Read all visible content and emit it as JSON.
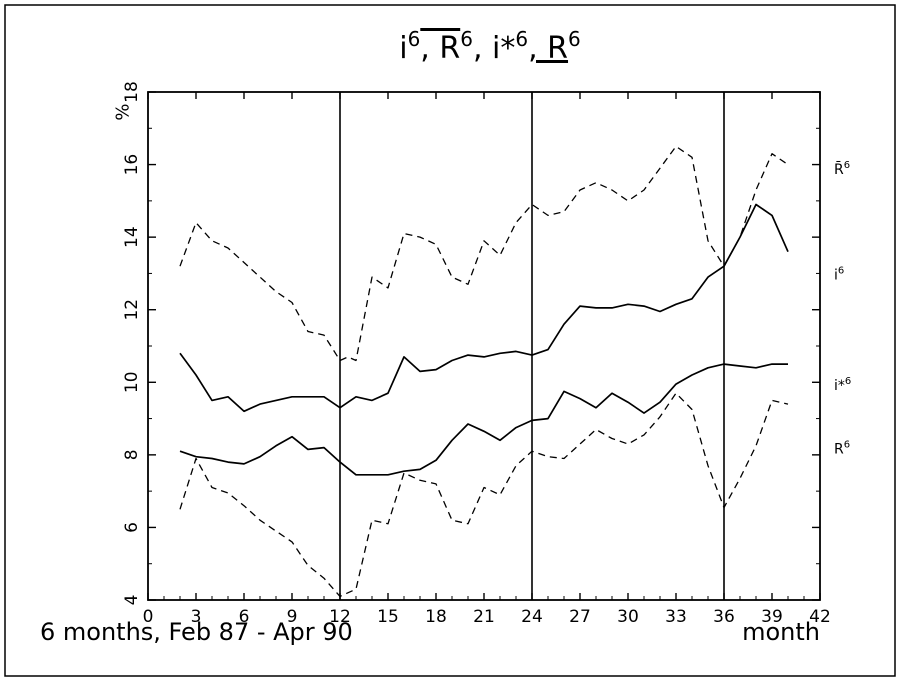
{
  "chart_data": {
    "type": "line",
    "title": {
      "parts": [
        "i",
        "R",
        "i*",
        "R"
      ],
      "superscript": "6",
      "separator": ", "
    },
    "ylabel": "%",
    "xlabel": "month",
    "caption": "6 months, Feb 87 - Apr 90",
    "xlim": [
      0,
      42
    ],
    "ylim": [
      4,
      18
    ],
    "x_ticks": [
      0,
      3,
      6,
      9,
      12,
      15,
      18,
      21,
      24,
      27,
      30,
      33,
      36,
      39,
      42
    ],
    "y_ticks": [
      4,
      6,
      8,
      10,
      12,
      14,
      16,
      18
    ],
    "vertical_lines": [
      12,
      24,
      36
    ],
    "grid": false,
    "series": [
      {
        "name": "R̄",
        "sup": "6",
        "style": "dashed",
        "points": [
          [
            2,
            13.2
          ],
          [
            3,
            14.4
          ],
          [
            4,
            13.9
          ],
          [
            5,
            13.7
          ],
          [
            6,
            13.3
          ],
          [
            7,
            12.9
          ],
          [
            8,
            12.5
          ],
          [
            9,
            12.2
          ],
          [
            10,
            11.4
          ],
          [
            11,
            11.3
          ],
          [
            12,
            10.6
          ],
          [
            12.5,
            10.7
          ],
          [
            13,
            10.6
          ],
          [
            14,
            12.9
          ],
          [
            15,
            12.6
          ],
          [
            16,
            14.1
          ],
          [
            17,
            14
          ],
          [
            18,
            13.8
          ],
          [
            19,
            12.9
          ],
          [
            20,
            12.7
          ],
          [
            21,
            13.9
          ],
          [
            22,
            13.5
          ],
          [
            23,
            14.4
          ],
          [
            24,
            14.9
          ],
          [
            25,
            14.6
          ],
          [
            26,
            14.7
          ],
          [
            27,
            15.3
          ],
          [
            28,
            15.5
          ],
          [
            29,
            15.3
          ],
          [
            30,
            15
          ],
          [
            31,
            15.3
          ],
          [
            32,
            15.9
          ],
          [
            33,
            16.5
          ],
          [
            34,
            16.2
          ],
          [
            35,
            13.9
          ],
          [
            36,
            13.2
          ],
          [
            37,
            14
          ],
          [
            38,
            15.3
          ],
          [
            39,
            16.3
          ],
          [
            40,
            16
          ]
        ]
      },
      {
        "name": "i",
        "sup": "6",
        "style": "solid",
        "points": [
          [
            2,
            10.8
          ],
          [
            3,
            10.2
          ],
          [
            4,
            9.5
          ],
          [
            5,
            9.6
          ],
          [
            6,
            9.2
          ],
          [
            7,
            9.4
          ],
          [
            8,
            9.5
          ],
          [
            9,
            9.6
          ],
          [
            10,
            9.6
          ],
          [
            11,
            9.6
          ],
          [
            12,
            9.3
          ],
          [
            13,
            9.6
          ],
          [
            14,
            9.5
          ],
          [
            15,
            9.7
          ],
          [
            16,
            10.7
          ],
          [
            17,
            10.3
          ],
          [
            18,
            10.35
          ],
          [
            19,
            10.6
          ],
          [
            20,
            10.75
          ],
          [
            21,
            10.7
          ],
          [
            22,
            10.8
          ],
          [
            23,
            10.85
          ],
          [
            24,
            10.75
          ],
          [
            25,
            10.9
          ],
          [
            26,
            11.6
          ],
          [
            27,
            12.1
          ],
          [
            28,
            12.05
          ],
          [
            29,
            12.05
          ],
          [
            30,
            12.15
          ],
          [
            31,
            12.1
          ],
          [
            32,
            11.95
          ],
          [
            33,
            12.15
          ],
          [
            34,
            12.3
          ],
          [
            35,
            12.9
          ],
          [
            36,
            13.2
          ],
          [
            37,
            14
          ],
          [
            38,
            14.9
          ],
          [
            39,
            14.6
          ],
          [
            40,
            13.6
          ]
        ]
      },
      {
        "name": "i*",
        "sup": "6",
        "style": "solid",
        "points": [
          [
            2,
            8.1
          ],
          [
            3,
            7.95
          ],
          [
            4,
            7.9
          ],
          [
            5,
            7.8
          ],
          [
            6,
            7.75
          ],
          [
            7,
            7.95
          ],
          [
            8,
            8.25
          ],
          [
            9,
            8.5
          ],
          [
            10,
            8.15
          ],
          [
            11,
            8.2
          ],
          [
            12,
            7.8
          ],
          [
            13,
            7.45
          ],
          [
            14,
            7.45
          ],
          [
            15,
            7.45
          ],
          [
            16,
            7.55
          ],
          [
            17,
            7.6
          ],
          [
            18,
            7.85
          ],
          [
            19,
            8.4
          ],
          [
            20,
            8.85
          ],
          [
            21,
            8.65
          ],
          [
            22,
            8.4
          ],
          [
            23,
            8.75
          ],
          [
            24,
            8.95
          ],
          [
            25,
            9
          ],
          [
            26,
            9.75
          ],
          [
            27,
            9.55
          ],
          [
            28,
            9.3
          ],
          [
            29,
            9.7
          ],
          [
            30,
            9.45
          ],
          [
            31,
            9.15
          ],
          [
            32,
            9.45
          ],
          [
            33,
            9.95
          ],
          [
            34,
            10.2
          ],
          [
            35,
            10.4
          ],
          [
            36,
            10.5
          ],
          [
            37,
            10.45
          ],
          [
            38,
            10.4
          ],
          [
            39,
            10.5
          ],
          [
            40,
            10.5
          ]
        ]
      },
      {
        "name": "R",
        "sup": "6",
        "style": "dashed",
        "points": [
          [
            2,
            6.5
          ],
          [
            3,
            7.9
          ],
          [
            4,
            7.1
          ],
          [
            5,
            6.95
          ],
          [
            6,
            6.6
          ],
          [
            7,
            6.2
          ],
          [
            8,
            5.9
          ],
          [
            9,
            5.6
          ],
          [
            10,
            4.95
          ],
          [
            11,
            4.6
          ],
          [
            12,
            4.1
          ],
          [
            13,
            4.3
          ],
          [
            14,
            6.2
          ],
          [
            15,
            6.1
          ],
          [
            16,
            7.5
          ],
          [
            17,
            7.3
          ],
          [
            18,
            7.2
          ],
          [
            19,
            6.2
          ],
          [
            20,
            6.1
          ],
          [
            21,
            7.1
          ],
          [
            22,
            6.9
          ],
          [
            23,
            7.7
          ],
          [
            24,
            8.1
          ],
          [
            25,
            7.95
          ],
          [
            26,
            7.9
          ],
          [
            27,
            8.3
          ],
          [
            28,
            8.7
          ],
          [
            29,
            8.45
          ],
          [
            30,
            8.3
          ],
          [
            31,
            8.55
          ],
          [
            32,
            9.05
          ],
          [
            33,
            9.7
          ],
          [
            34,
            9.25
          ],
          [
            35,
            7.7
          ],
          [
            36,
            6.55
          ],
          [
            37,
            7.35
          ],
          [
            38,
            8.25
          ],
          [
            39,
            9.5
          ],
          [
            40,
            9.4
          ]
        ]
      }
    ]
  }
}
